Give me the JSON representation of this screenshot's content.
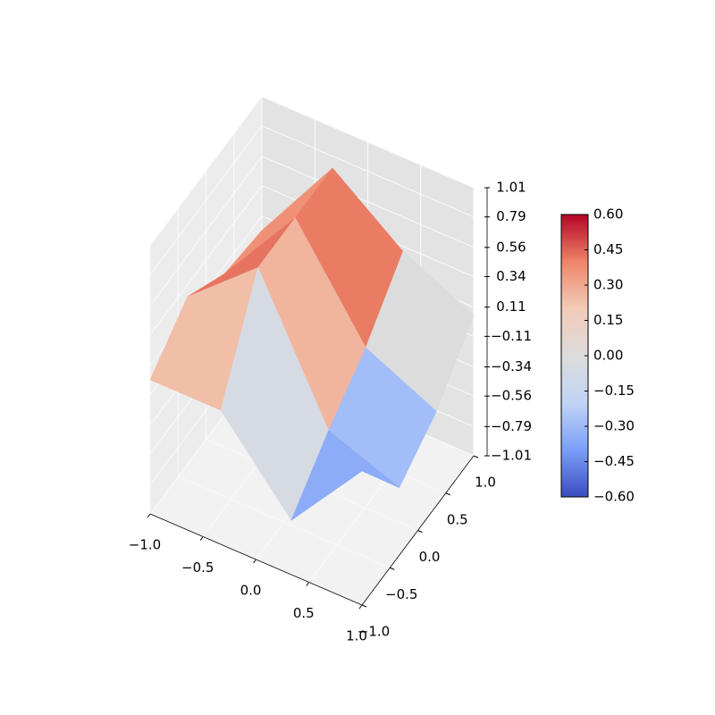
{
  "chart_data": {
    "type": "surface3d",
    "x": [
      -1,
      -0.333,
      0.333,
      1
    ],
    "y": [
      -1,
      -0.333,
      0.333,
      1
    ],
    "z": [
      [
        0.0,
        0.0,
        -0.6,
        0.0
      ],
      [
        0.25,
        0.7,
        -0.3,
        -0.5
      ],
      [
        0.05,
        0.7,
        -0.05,
        -0.3
      ],
      [
        0.0,
        0.7,
        0.3,
        0.05
      ]
    ],
    "xlim": [
      -1,
      1
    ],
    "ylim": [
      -1,
      1
    ],
    "zlim": [
      -1.01,
      1.01
    ],
    "xticks": [
      {
        "value": -1,
        "label": "−1.0"
      },
      {
        "value": -0.5,
        "label": "−0.5"
      },
      {
        "value": 0,
        "label": "0.0"
      },
      0.5,
      {
        "value": 1,
        "label": "1.0"
      }
    ],
    "yticks": [
      {
        "value": -1,
        "label": "−1.0"
      },
      {
        "value": -0.5,
        "label": "−0.5"
      },
      {
        "value": 0,
        "label": "0.0"
      },
      0.5,
      {
        "value": 1,
        "label": "1.0"
      }
    ],
    "zticks": [
      {
        "value": -1.01,
        "label": "−1.01"
      },
      {
        "value": -0.79,
        "label": "−0.79"
      },
      {
        "value": -0.56,
        "label": "−0.56"
      },
      {
        "value": -0.34,
        "label": "−0.34"
      },
      {
        "value": -0.11,
        "label": "−0.11"
      },
      0.11,
      0.34,
      0.56,
      0.79,
      1.01
    ],
    "colormap": [
      "#3b4cc0",
      "#7b9ff9",
      "#c0d4f5",
      "#dddcdc",
      "#f2cbb7",
      "#ee8468",
      "#b40426"
    ],
    "clim": [
      -0.6,
      0.6
    ],
    "cticks": [
      {
        "value": -0.6,
        "label": "−0.60"
      },
      {
        "value": -0.45,
        "label": "−0.45"
      },
      {
        "value": -0.3,
        "label": "−0.30"
      },
      {
        "value": -0.15,
        "label": "−0.15"
      },
      {
        "value": 0,
        "label": "0.00"
      },
      0.15,
      {
        "value": 0.3,
        "label": "0.30"
      },
      0.45,
      {
        "value": 0.6,
        "label": "0.60"
      }
    ],
    "grid": true
  }
}
